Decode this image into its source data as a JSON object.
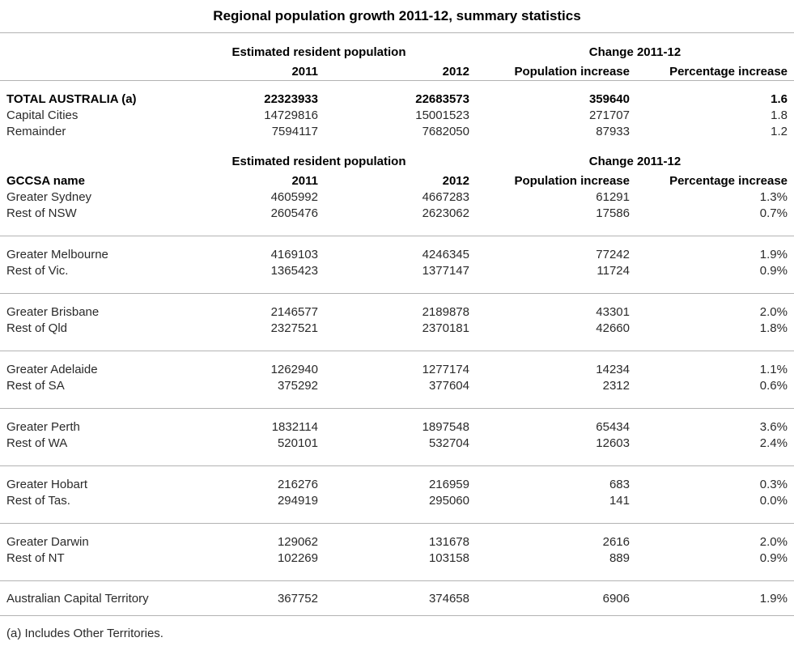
{
  "title": "Regional population growth 2011-12, summary statistics",
  "footnote": "(a) Includes Other Territories.",
  "colors": {
    "divider": "#b3b3b3",
    "text": "#2a2a2a",
    "heading": "#000000"
  },
  "table": {
    "group_headers": {
      "population": "Estimated resident population",
      "change": "Change 2011-12"
    },
    "column_headers": {
      "name_blank": "",
      "gccsa_name": "GCCSA name",
      "y2011": "2011",
      "y2012": "2012",
      "population_increase": "Population increase",
      "percentage_increase": "Percentage increase"
    },
    "summary_rows": [
      {
        "name": "TOTAL AUSTRALIA (a)",
        "y2011": "22323933",
        "y2012": "22683573",
        "population_increase": "359640",
        "percentage_increase": "1.6",
        "emphasis": true
      },
      {
        "name": "Capital Cities",
        "y2011": "14729816",
        "y2012": "15001523",
        "population_increase": "271707",
        "percentage_increase": "1.8",
        "emphasis": false
      },
      {
        "name": "Remainder",
        "y2011": "7594117",
        "y2012": "7682050",
        "population_increase": "87933",
        "percentage_increase": "1.2",
        "emphasis": false
      }
    ],
    "gccsa_sections": [
      {
        "rows": [
          {
            "name": "Greater Sydney",
            "y2011": "4605992",
            "y2012": "4667283",
            "population_increase": "61291",
            "percentage_increase": "1.3%"
          },
          {
            "name": "Rest of NSW",
            "y2011": "2605476",
            "y2012": "2623062",
            "population_increase": "17586",
            "percentage_increase": "0.7%"
          }
        ]
      },
      {
        "rows": [
          {
            "name": "Greater Melbourne",
            "y2011": "4169103",
            "y2012": "4246345",
            "population_increase": "77242",
            "percentage_increase": "1.9%"
          },
          {
            "name": "Rest of Vic.",
            "y2011": "1365423",
            "y2012": "1377147",
            "population_increase": "11724",
            "percentage_increase": "0.9%"
          }
        ]
      },
      {
        "rows": [
          {
            "name": "Greater Brisbane",
            "y2011": "2146577",
            "y2012": "2189878",
            "population_increase": "43301",
            "percentage_increase": "2.0%"
          },
          {
            "name": "Rest of Qld",
            "y2011": "2327521",
            "y2012": "2370181",
            "population_increase": "42660",
            "percentage_increase": "1.8%"
          }
        ]
      },
      {
        "rows": [
          {
            "name": "Greater Adelaide",
            "y2011": "1262940",
            "y2012": "1277174",
            "population_increase": "14234",
            "percentage_increase": "1.1%"
          },
          {
            "name": "Rest of SA",
            "y2011": "375292",
            "y2012": "377604",
            "population_increase": "2312",
            "percentage_increase": "0.6%"
          }
        ]
      },
      {
        "rows": [
          {
            "name": "Greater Perth",
            "y2011": "1832114",
            "y2012": "1897548",
            "population_increase": "65434",
            "percentage_increase": "3.6%"
          },
          {
            "name": "Rest of WA",
            "y2011": "520101",
            "y2012": "532704",
            "population_increase": "12603",
            "percentage_increase": "2.4%"
          }
        ]
      },
      {
        "rows": [
          {
            "name": "Greater Hobart",
            "y2011": "216276",
            "y2012": "216959",
            "population_increase": "683",
            "percentage_increase": "0.3%"
          },
          {
            "name": "Rest of Tas.",
            "y2011": "294919",
            "y2012": "295060",
            "population_increase": "141",
            "percentage_increase": "0.0%"
          }
        ]
      },
      {
        "rows": [
          {
            "name": "Greater Darwin",
            "y2011": "129062",
            "y2012": "131678",
            "population_increase": "2616",
            "percentage_increase": "2.0%"
          },
          {
            "name": "Rest of NT",
            "y2011": "102269",
            "y2012": "103158",
            "population_increase": "889",
            "percentage_increase": "0.9%"
          }
        ]
      },
      {
        "compact": true,
        "rows": [
          {
            "name": "Australian Capital Territory",
            "y2011": "367752",
            "y2012": "374658",
            "population_increase": "6906",
            "percentage_increase": "1.9%"
          }
        ]
      }
    ]
  }
}
